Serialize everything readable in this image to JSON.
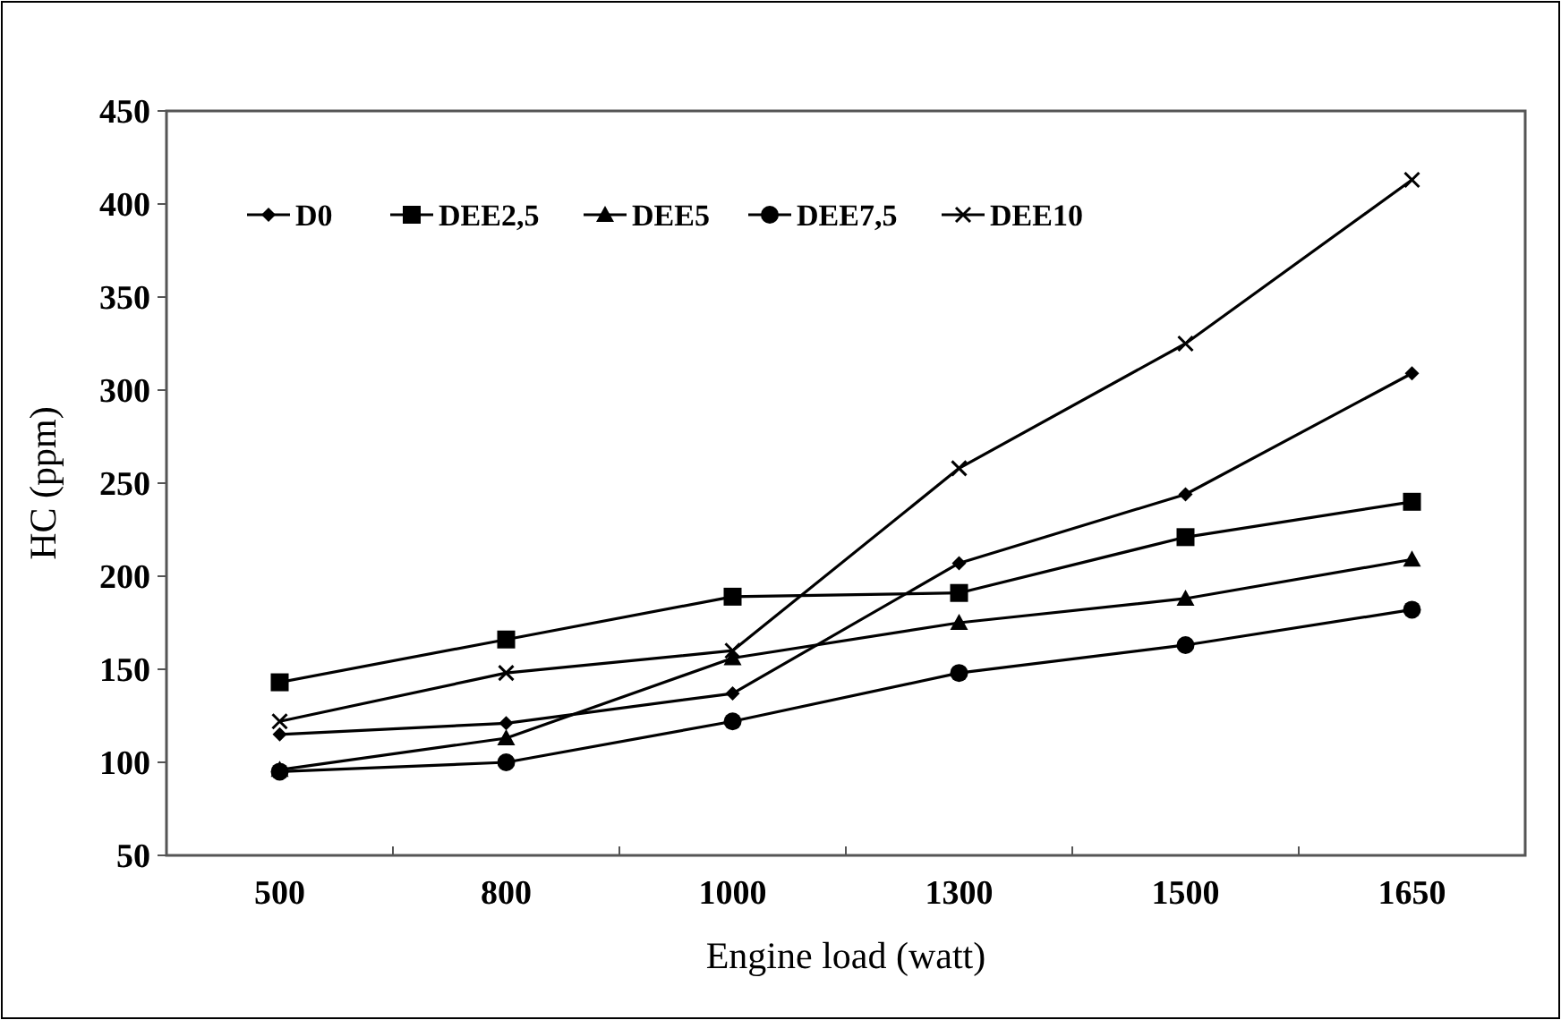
{
  "chart_data": {
    "type": "line",
    "xlabel": "Engine load (watt)",
    "ylabel": "HC (ppm)",
    "categories": [
      "500",
      "800",
      "1000",
      "1300",
      "1500",
      "1650"
    ],
    "ylim": [
      50,
      450
    ],
    "yticks": [
      50,
      100,
      150,
      200,
      250,
      300,
      350,
      400,
      450
    ],
    "grid": false,
    "legend": "top left",
    "series": [
      {
        "name": "D0",
        "color": "#000000",
        "marker": "diamond",
        "values": [
          115,
          121,
          137,
          207,
          244,
          309
        ]
      },
      {
        "name": "DEE2,5",
        "color": "#000000",
        "marker": "square",
        "values": [
          143,
          166,
          189,
          191,
          221,
          240
        ]
      },
      {
        "name": "DEE5",
        "color": "#000000",
        "marker": "triangle",
        "values": [
          96,
          113,
          156,
          175,
          188,
          209
        ]
      },
      {
        "name": "DEE7,5",
        "color": "#000000",
        "marker": "circle",
        "values": [
          95,
          100,
          122,
          148,
          163,
          182
        ]
      },
      {
        "name": "DEE10",
        "color": "#000000",
        "marker": "cross",
        "values": [
          122,
          148,
          160,
          258,
          325,
          413
        ]
      }
    ]
  }
}
